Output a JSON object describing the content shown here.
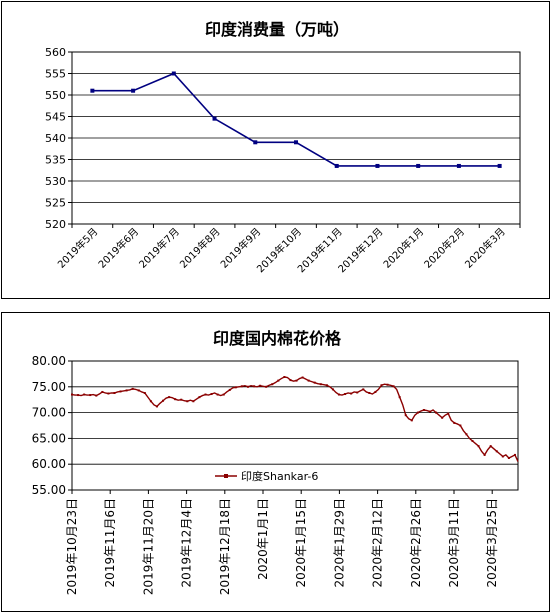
{
  "chart_data": [
    {
      "type": "line",
      "title": "印度消费量（万吨）",
      "categories": [
        "2019年5月",
        "2019年6月",
        "2019年7月",
        "2019年8月",
        "2019年9月",
        "2019年10月",
        "2019年11月",
        "2019年12月",
        "2020年1月",
        "2020年2月",
        "2020年3月"
      ],
      "series": [
        {
          "values": [
            551,
            551,
            555,
            544.5,
            539,
            539,
            533.5,
            533.5,
            533.5,
            533.5,
            533.5
          ],
          "color": "#000080"
        }
      ],
      "ylim": [
        520,
        560
      ],
      "yticks": [
        520,
        525,
        530,
        535,
        540,
        545,
        550,
        555,
        560
      ],
      "grid": true
    },
    {
      "type": "line",
      "title": "印度国内棉花价格",
      "x_tick_labels": [
        "2019年10月23日",
        "2019年11月6日",
        "2019年11月20日",
        "2019年12月4日",
        "2019年12月18日",
        "2020年1月1日",
        "2020年1月15日",
        "2020年1月29日",
        "2020年2月12日",
        "2020年2月26日",
        "2020年3月11日",
        "2020年3月25日"
      ],
      "series": [
        {
          "name": "印度Shankar-6",
          "color": "#8b0000",
          "values": [
            73.5,
            73.4,
            73.4,
            73.3,
            73.5,
            73.4,
            73.4,
            73.5,
            73.3,
            73.6,
            74.0,
            73.8,
            73.7,
            73.8,
            73.8,
            74.0,
            74.1,
            74.2,
            74.3,
            74.4,
            74.6,
            74.5,
            74.3,
            74.0,
            73.8,
            73.0,
            72.2,
            71.5,
            71.2,
            71.8,
            72.3,
            72.8,
            73.0,
            72.9,
            72.6,
            72.4,
            72.5,
            72.3,
            72.2,
            72.4,
            72.2,
            72.6,
            73.0,
            73.3,
            73.5,
            73.4,
            73.6,
            73.8,
            73.5,
            73.3,
            73.5,
            74.0,
            74.4,
            74.8,
            74.9,
            75.0,
            75.1,
            75.2,
            75.0,
            75.2,
            75.1,
            75.0,
            75.2,
            75.1,
            75.0,
            75.3,
            75.5,
            75.8,
            76.2,
            76.6,
            76.9,
            76.8,
            76.3,
            76.1,
            76.2,
            76.6,
            76.8,
            76.5,
            76.2,
            76.0,
            75.8,
            75.6,
            75.5,
            75.4,
            75.3,
            75.0,
            74.5,
            73.9,
            73.5,
            73.4,
            73.6,
            73.8,
            73.7,
            74.0,
            73.9,
            74.2,
            74.5,
            74.0,
            73.8,
            73.6,
            74.0,
            74.5,
            75.3,
            75.5,
            75.4,
            75.3,
            75.1,
            74.5,
            73.0,
            71.5,
            69.5,
            68.8,
            68.5,
            69.5,
            70.0,
            70.3,
            70.5,
            70.4,
            70.2,
            70.5,
            70.0,
            69.5,
            69.0,
            69.5,
            69.8,
            68.5,
            68.0,
            67.8,
            67.5,
            66.5,
            65.8,
            65.0,
            64.5,
            64.0,
            63.5,
            62.5,
            61.8,
            62.8,
            63.5,
            63.0,
            62.5,
            62.0,
            61.5,
            61.8,
            61.2,
            61.5,
            61.8,
            60.5
          ]
        }
      ],
      "ylim": [
        55,
        80
      ],
      "yticks": [
        "55.00",
        "60.00",
        "65.00",
        "70.00",
        "75.00",
        "80.00"
      ],
      "grid": true,
      "legend_position": "bottom-left"
    }
  ]
}
